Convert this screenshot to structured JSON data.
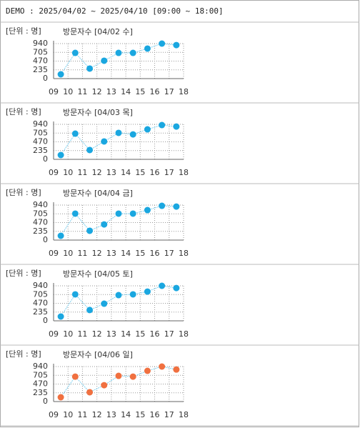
{
  "header": "DEMO : 2025/04/02 ~ 2025/04/10  [09:00 ~ 18:00]",
  "chart_data": [
    {
      "type": "line",
      "unit_label": "[단위 : 명]",
      "title": "방문자수 [04/02 수]",
      "x": [
        9.5,
        10.5,
        11.5,
        12.5,
        13.5,
        14.5,
        15.5,
        16.5,
        17.5
      ],
      "xlim": [
        9,
        18
      ],
      "xticks": [
        {
          "value": 9,
          "label": "09"
        },
        10,
        11,
        12,
        13,
        14,
        15,
        16,
        17,
        18
      ],
      "ylim": [
        0,
        940
      ],
      "yticks": [
        0,
        235,
        470,
        705,
        940
      ],
      "grid": true,
      "series": [
        {
          "color": "#1aa7e0",
          "values": [
            115,
            690,
            269,
            480,
            690,
            690,
            806,
            940,
            900
          ]
        }
      ]
    },
    {
      "type": "line",
      "unit_label": "[단위 : 명]",
      "title": "방문자수 [04/03 목]",
      "x": [
        9.5,
        10.5,
        11.5,
        12.5,
        13.5,
        14.5,
        15.5,
        16.5,
        17.5
      ],
      "xlim": [
        9,
        18
      ],
      "xticks": [
        {
          "value": 9,
          "label": "09"
        },
        10,
        11,
        12,
        13,
        14,
        15,
        16,
        17,
        18
      ],
      "ylim": [
        0,
        940
      ],
      "yticks": [
        0,
        235,
        470,
        705,
        940
      ],
      "grid": true,
      "series": [
        {
          "color": "#1aa7e0",
          "values": [
            115,
            690,
            250,
            480,
            710,
            670,
            805,
            920,
            880
          ]
        }
      ]
    },
    {
      "type": "line",
      "unit_label": "[단위 : 명]",
      "title": "방문자수 [04/04 금]",
      "x": [
        9.5,
        10.5,
        11.5,
        12.5,
        13.5,
        14.5,
        15.5,
        16.5,
        17.5
      ],
      "xlim": [
        9,
        18
      ],
      "xticks": [
        {
          "value": 9,
          "label": "09"
        },
        10,
        11,
        12,
        13,
        14,
        15,
        16,
        17,
        18
      ],
      "ylim": [
        0,
        940
      ],
      "yticks": [
        0,
        235,
        470,
        705,
        940
      ],
      "grid": true,
      "series": [
        {
          "color": "#1aa7e0",
          "values": [
            115,
            710,
            250,
            420,
            710,
            710,
            805,
            920,
            900
          ]
        }
      ]
    },
    {
      "type": "line",
      "unit_label": "[단위 : 명]",
      "title": "방문자수 [04/05 토]",
      "x": [
        9.5,
        10.5,
        11.5,
        12.5,
        13.5,
        14.5,
        15.5,
        16.5,
        17.5
      ],
      "xlim": [
        9,
        18
      ],
      "xticks": [
        {
          "value": 9,
          "label": "09"
        },
        10,
        11,
        12,
        13,
        14,
        15,
        16,
        17,
        18
      ],
      "ylim": [
        0,
        940
      ],
      "yticks": [
        0,
        235,
        470,
        705,
        940
      ],
      "grid": true,
      "series": [
        {
          "color": "#1aa7e0",
          "values": [
            115,
            710,
            290,
            460,
            690,
            710,
            785,
            940,
            880
          ]
        }
      ]
    },
    {
      "type": "line",
      "unit_label": "[단위 : 명]",
      "title": "방문자수 [04/06 일]",
      "x": [
        9.5,
        10.5,
        11.5,
        12.5,
        13.5,
        14.5,
        15.5,
        16.5,
        17.5
      ],
      "xlim": [
        9,
        18
      ],
      "xticks": [
        {
          "value": 9,
          "label": "09"
        },
        10,
        11,
        12,
        13,
        14,
        15,
        16,
        17,
        18
      ],
      "ylim": [
        0,
        940
      ],
      "yticks": [
        0,
        235,
        470,
        705,
        940
      ],
      "grid": true,
      "series": [
        {
          "color": "#f07040",
          "values": [
            115,
            670,
            250,
            440,
            690,
            670,
            825,
            940,
            860
          ]
        }
      ]
    }
  ]
}
